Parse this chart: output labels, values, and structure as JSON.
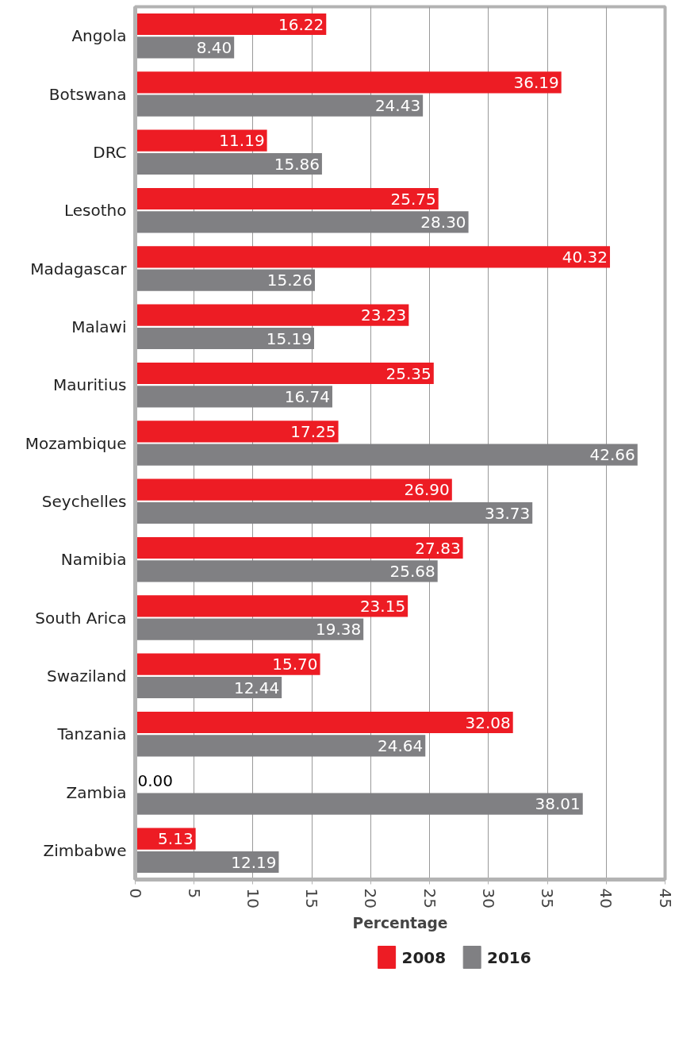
{
  "chart_data": {
    "type": "bar",
    "orientation": "horizontal",
    "xlabel": "Percentage",
    "categories": [
      "Angola",
      "Botswana",
      "DRC",
      "Lesotho",
      "Madagascar",
      "Malawi",
      "Mauritius",
      "Mozambique",
      "Seychelles",
      "Namibia",
      "South Arica",
      "Swaziland",
      "Tanzania",
      "Zambia",
      "Zimbabwe"
    ],
    "series": [
      {
        "name": "2008",
        "color": "#ed1c24",
        "values": [
          16.22,
          36.19,
          11.19,
          25.75,
          40.32,
          23.23,
          25.35,
          17.25,
          26.9,
          27.83,
          23.15,
          15.7,
          32.08,
          0,
          5.13
        ],
        "value_labels": [
          "16.22",
          "36.19",
          "11.19",
          "25.75",
          "40.32",
          "23.23",
          "25.35",
          "17.25",
          "26.90",
          "27.83",
          "23.15",
          "15.70",
          "32.08",
          "0.00",
          "5.13"
        ]
      },
      {
        "name": "2016",
        "color": "#808083",
        "values": [
          8.4,
          24.43,
          15.86,
          28.3,
          15.26,
          15.19,
          16.74,
          42.66,
          33.73,
          25.68,
          19.38,
          12.44,
          24.64,
          38.01,
          12.19
        ],
        "value_labels": [
          "8.40",
          "24.43",
          "15.86",
          "28.30",
          "15.26",
          "15.19",
          "16.74",
          "42.66",
          "33.73",
          "25.68",
          "19.38",
          "12.44",
          "24.64",
          "38.01",
          "12.19"
        ]
      }
    ],
    "xlim": [
      0,
      45
    ],
    "xticks": [
      0,
      5,
      10,
      15,
      20,
      25,
      30,
      35,
      40,
      45
    ],
    "grid": "x",
    "legend": "bottom"
  }
}
